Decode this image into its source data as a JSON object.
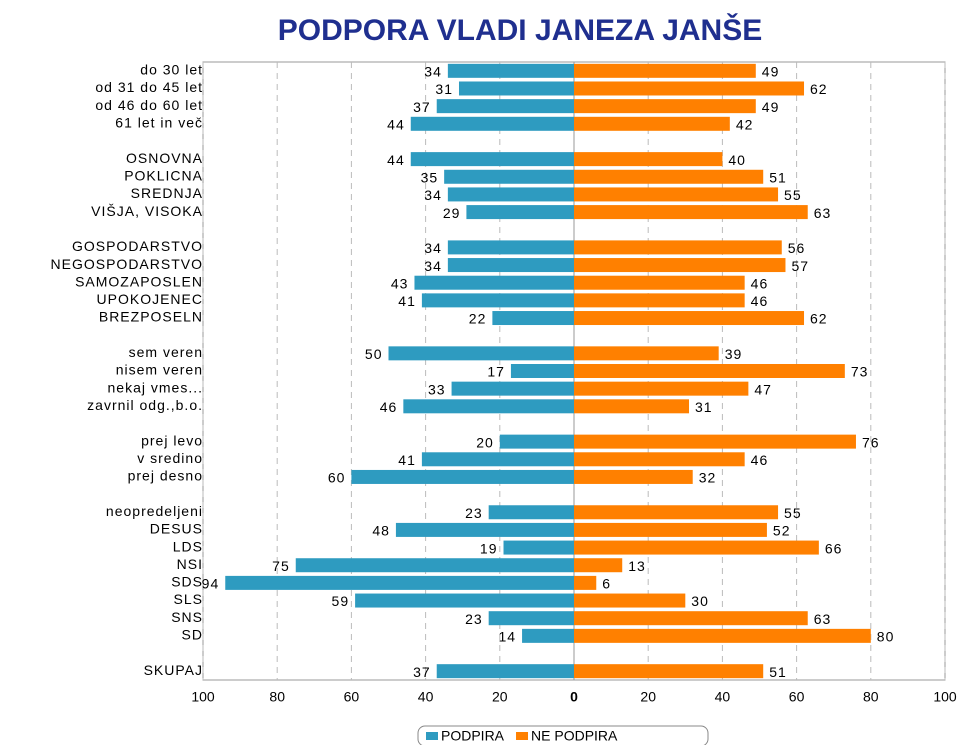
{
  "chart_data": {
    "type": "diverging_bar",
    "title": "PODPORA VLADI JANEZA JANŠE",
    "categories": [
      "do 30 let",
      "od 31 do 45 let",
      "od 46 do 60 let",
      "61 let in več",
      null,
      "OSNOVNA",
      "POKLICNA",
      "SREDNJA",
      "VIŠJA, VISOKA",
      null,
      "GOSPODARSTVO",
      "NEGOSPODARSTVO",
      "SAMOZAPOSLEN",
      "UPOKOJENEC",
      "BREZPOSELN",
      null,
      "sem veren",
      "nisem veren",
      "nekaj vmes...",
      "zavrnil odg.,b.o.",
      null,
      "prej levo",
      "v sredino",
      "prej desno",
      null,
      "neopredeljeni",
      "DESUS",
      "LDS",
      "NSI",
      "SDS",
      "SLS",
      "SNS",
      "SD",
      null,
      "SKUPAJ"
    ],
    "series": [
      {
        "name": "PODPIRA",
        "color": "#2e9bc0",
        "side": "left",
        "values": [
          34,
          31,
          37,
          44,
          null,
          44,
          35,
          34,
          29,
          null,
          34,
          34,
          43,
          41,
          22,
          null,
          50,
          17,
          33,
          46,
          null,
          20,
          41,
          60,
          null,
          23,
          48,
          19,
          75,
          94,
          59,
          23,
          14,
          null,
          37
        ]
      },
      {
        "name": "NE PODPIRA",
        "color": "#ff8000",
        "side": "right",
        "values": [
          49,
          62,
          49,
          42,
          null,
          40,
          51,
          55,
          63,
          null,
          56,
          57,
          46,
          46,
          62,
          null,
          39,
          73,
          47,
          31,
          null,
          76,
          46,
          32,
          null,
          55,
          52,
          66,
          13,
          6,
          30,
          63,
          80,
          null,
          51
        ]
      }
    ],
    "xlim": [
      -100,
      100
    ],
    "xticks": [
      {
        "value": -100,
        "label": "100"
      },
      {
        "value": -80,
        "label": "80"
      },
      {
        "value": -60,
        "label": "60"
      },
      {
        "value": -40,
        "label": "40"
      },
      {
        "value": -20,
        "label": "20"
      },
      0,
      20,
      40,
      60,
      80,
      100
    ],
    "grid": true,
    "legend": "bottom"
  }
}
